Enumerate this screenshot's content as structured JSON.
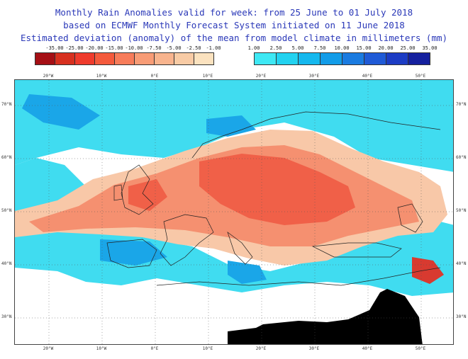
{
  "header": {
    "line1": "Monthly Rain Anomalies valid for week: from 25 June to 01 July 2018",
    "line2": "based on ECMWF Monthly Forecast System initiated on 11 June 2018",
    "line3": "Estimated deviation (anomaly) of the mean from model climate in millimeters (mm)"
  },
  "legend_dry": {
    "labels": [
      "-35.00",
      "-25.00",
      "-20.00",
      "-15.00",
      "-10.00",
      "-7.50",
      "-5.00",
      "-2.50",
      "-1.00"
    ],
    "colors": [
      "#a50f15",
      "#d7301f",
      "#ef3b2c",
      "#f45a3c",
      "#f77c5a",
      "#f89c76",
      "#f8b48e",
      "#f8cba5",
      "#fbe2bf"
    ]
  },
  "legend_wet": {
    "labels": [
      "1.00",
      "2.50",
      "5.00",
      "7.50",
      "10.00",
      "15.00",
      "20.00",
      "25.00",
      "35.00"
    ],
    "colors": [
      "#3ee8f4",
      "#22d2f0",
      "#15b8ee",
      "#129ce8",
      "#1a7be0",
      "#1f5ad6",
      "#1c3cc4",
      "#15209e"
    ]
  },
  "map": {
    "x_ticks": [
      "20°W",
      "10°W",
      "0°E",
      "10°E",
      "20°E",
      "30°E",
      "40°E",
      "50°E"
    ],
    "y_ticks": [
      "70°N",
      "60°N",
      "50°N",
      "40°N",
      "30°N"
    ],
    "colors": {
      "wet_light": "#40dcf0",
      "wet_mid": "#1aa6e8",
      "wet_dark": "#2a62d8",
      "dry_light": "#f8c8a8",
      "dry_mid": "#f59070",
      "dry_dark": "#f06048",
      "dry_deep": "#d83a30",
      "nodata": "#000000"
    }
  }
}
